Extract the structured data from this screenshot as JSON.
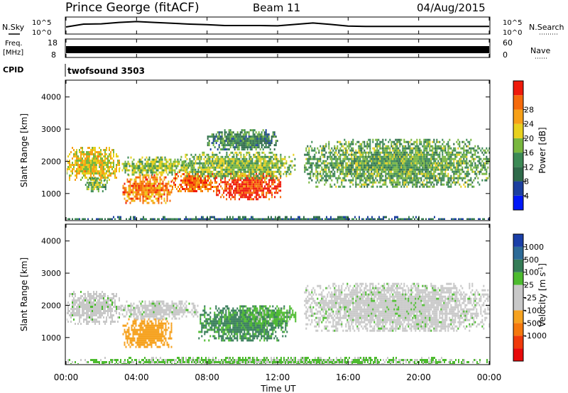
{
  "header": {
    "station": "Prince George (fitACF)",
    "beam": "Beam 11",
    "date": "04/Aug/2015"
  },
  "strip_panels": {
    "nsky_label": "N.Sky",
    "nsky_ticks": [
      "10^5",
      "10^0"
    ],
    "nsearch_label": "N.Search",
    "nsearch_ticks": [
      "10^5",
      "10^0"
    ],
    "freq_label_line1": "Freq.",
    "freq_label_line2": "[MHz]",
    "freq_ticks": [
      "18",
      "8"
    ],
    "nave_label": "Nave",
    "nave_ticks": [
      "60",
      "0"
    ],
    "cpid_label": "CPID",
    "cpid_value": "twofsound 3503"
  },
  "axes": {
    "xlabel": "Time UT",
    "xticks": [
      "00:00",
      "04:00",
      "08:00",
      "12:00",
      "16:00",
      "20:00",
      "00:00"
    ],
    "ylabel": "Slant Range [km]",
    "yticks": [
      "1000",
      "2000",
      "3000",
      "4000"
    ]
  },
  "colorbars": {
    "power": {
      "label": "Power [dB]",
      "ticks": [
        "4",
        "8",
        "12",
        "16",
        "20",
        "24",
        "28"
      ],
      "colors": [
        "#0018f8",
        "#1c3f9f",
        "#2f6a4a",
        "#3c8a55",
        "#79b73f",
        "#e8d11e",
        "#f7a018",
        "#f56a0c",
        "#ef1a0b"
      ]
    },
    "velocity": {
      "label_main": "Velocity [m s",
      "label_sup": "-1",
      "label_end": "]",
      "ticks": [
        "1000",
        "500",
        "100",
        "25",
        "-25",
        "-100",
        "-500",
        "-1000"
      ],
      "colors": [
        "#1a3fa8",
        "#2d6a97",
        "#357c57",
        "#4dbb2f",
        "#c8c8c8",
        "#c8c8c8",
        "#f6a220",
        "#f5780e",
        "#f03a0b",
        "#e80a0a"
      ]
    }
  },
  "chart_data": [
    {
      "type": "line",
      "title": "N.Sky / N.Search",
      "x_unit": "hours UT",
      "x": [
        0,
        1,
        2,
        3,
        4,
        5,
        6,
        7,
        8,
        9,
        10,
        11,
        12,
        13,
        14,
        15,
        16,
        17,
        18,
        19,
        20,
        21,
        22,
        23,
        24
      ],
      "series": [
        {
          "name": "N.Sky",
          "values": [
            2.0,
            3.0,
            3.1,
            3.6,
            3.9,
            3.6,
            3.3,
            3.0,
            2.8,
            2.5,
            2.5,
            2.5,
            2.4,
            2.9,
            3.4,
            2.9,
            2.3,
            2.2,
            2.2,
            2.2,
            2.2,
            2.2,
            2.2,
            2.2,
            2.2
          ]
        }
      ],
      "ylim": [
        0,
        5
      ],
      "scale": "log10"
    },
    {
      "type": "heatmap",
      "title": "Power [dB]",
      "x_unit": "hours UT",
      "y_unit": "km",
      "xlim": [
        0,
        24
      ],
      "ylim": [
        180,
        4500
      ],
      "regions": [
        {
          "x": [
            0.0,
            3.0
          ],
          "y": [
            1450,
            2450
          ],
          "power": 20
        },
        {
          "x": [
            1.0,
            2.3
          ],
          "y": [
            1100,
            1500
          ],
          "power": 15
        },
        {
          "x": [
            3.2,
            6.0
          ],
          "y": [
            700,
            1600
          ],
          "power": 25
        },
        {
          "x": [
            3.0,
            7.0
          ],
          "y": [
            1600,
            2150
          ],
          "power": 16
        },
        {
          "x": [
            6.0,
            8.5
          ],
          "y": [
            1050,
            1700
          ],
          "power": 26
        },
        {
          "x": [
            8.5,
            12.2
          ],
          "y": [
            850,
            1650
          ],
          "power": 29
        },
        {
          "x": [
            6.5,
            13.0
          ],
          "y": [
            1500,
            2300
          ],
          "power": 16
        },
        {
          "x": [
            8.0,
            12.0
          ],
          "y": [
            2350,
            3000
          ],
          "power": 11
        },
        {
          "x": [
            13.5,
            24.0
          ],
          "y": [
            1200,
            2700
          ],
          "power": 14
        },
        {
          "x": [
            0.0,
            24.0
          ],
          "y": [
            180,
            300
          ],
          "power": 9
        }
      ]
    },
    {
      "type": "heatmap",
      "title": "Velocity [m s-1]",
      "x_unit": "hours UT",
      "y_unit": "km",
      "xlim": [
        0,
        24
      ],
      "ylim": [
        180,
        4500
      ],
      "regions": [
        {
          "x": [
            0.0,
            3.0
          ],
          "y": [
            1450,
            2450
          ],
          "velocity": 0
        },
        {
          "x": [
            3.2,
            6.0
          ],
          "y": [
            700,
            1600
          ],
          "velocity": -300
        },
        {
          "x": [
            3.0,
            7.5
          ],
          "y": [
            1600,
            2150
          ],
          "velocity": 0
        },
        {
          "x": [
            7.5,
            12.5
          ],
          "y": [
            900,
            2000
          ],
          "velocity": 150
        },
        {
          "x": [
            10.0,
            13.0
          ],
          "y": [
            1400,
            2000
          ],
          "velocity": 60
        },
        {
          "x": [
            13.5,
            24.0
          ],
          "y": [
            1200,
            2700
          ],
          "velocity": 0
        },
        {
          "x": [
            0.0,
            24.0
          ],
          "y": [
            180,
            400
          ],
          "velocity": 40
        }
      ]
    }
  ]
}
